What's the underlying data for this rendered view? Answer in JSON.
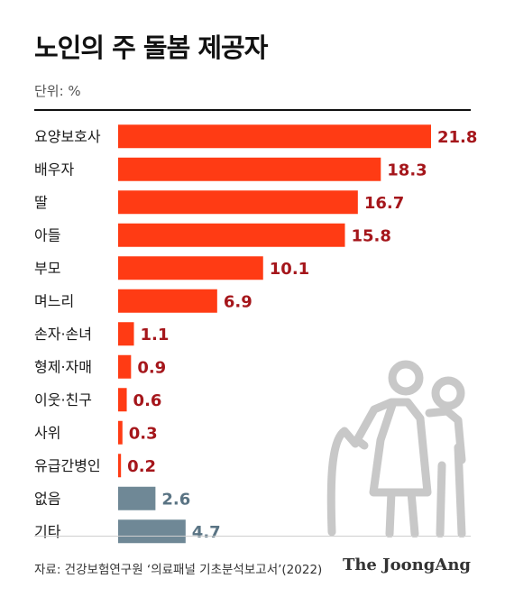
{
  "title": "노인의 주 돌봄 제공자",
  "unit": "단위: %",
  "source": "자료: 건강보험연구원 ‘의료패널 기초분석보고서’(2022)",
  "brand": "The JoongAng",
  "colors": {
    "primary_bar": "#ff3b14",
    "primary_value": "#a5161b",
    "secondary_bar": "#6f8896",
    "secondary_value": "#5a7484",
    "illustration": "#c8c8c8"
  },
  "chart_data": {
    "type": "bar",
    "orientation": "horizontal",
    "categories": [
      "요양보호사",
      "배우자",
      "딸",
      "아들",
      "부모",
      "며느리",
      "손자·손녀",
      "형제·자매",
      "이웃·친구",
      "사위",
      "유급간병인",
      "없음",
      "기타"
    ],
    "values": [
      21.8,
      18.3,
      16.7,
      15.8,
      10.1,
      6.9,
      1.1,
      0.9,
      0.6,
      0.3,
      0.2,
      2.6,
      4.7
    ],
    "value_labels": [
      "21.8",
      "18.3",
      "16.7",
      "15.8",
      "10.1",
      "6.9",
      "1.1",
      "0.9",
      "0.6",
      "0.3",
      "0.2",
      "2.6",
      "4.7"
    ],
    "highlight": [
      true,
      true,
      true,
      true,
      true,
      true,
      true,
      true,
      true,
      true,
      true,
      false,
      false
    ],
    "xlim": [
      0,
      21.8
    ],
    "grid": false,
    "legend": "none",
    "title": "노인의 주 돌봄 제공자",
    "xlabel": "",
    "ylabel": ""
  }
}
